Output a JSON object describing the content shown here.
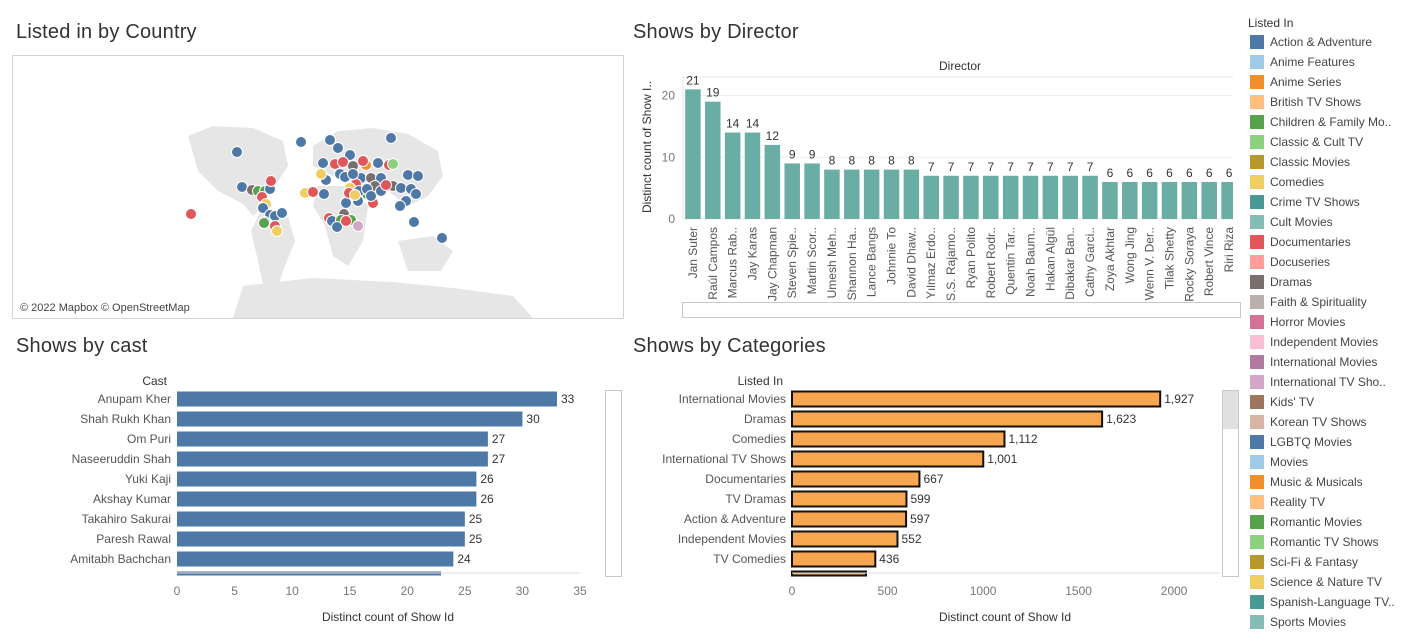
{
  "titles": {
    "country": "Listed in by Country",
    "director": "Shows by Director",
    "cast": "Shows by cast",
    "categories": "Shows by Categories"
  },
  "map": {
    "credit": "© 2022 Mapbox © OpenStreetMap",
    "land_color": "#e8e8e8"
  },
  "legend": {
    "title": "Listed In",
    "items": [
      {
        "label": "Action & Adventure",
        "color": "#4e79a7"
      },
      {
        "label": "Anime Features",
        "color": "#a0cbe8"
      },
      {
        "label": "Anime Series",
        "color": "#f28e2b"
      },
      {
        "label": "British TV Shows",
        "color": "#ffbe7d"
      },
      {
        "label": "Children & Family Mo..",
        "color": "#59a14f"
      },
      {
        "label": "Classic & Cult TV",
        "color": "#8cd17d"
      },
      {
        "label": "Classic Movies",
        "color": "#b6992d"
      },
      {
        "label": "Comedies",
        "color": "#f1ce63"
      },
      {
        "label": "Crime TV Shows",
        "color": "#499894"
      },
      {
        "label": "Cult Movies",
        "color": "#86bcb6"
      },
      {
        "label": "Documentaries",
        "color": "#e15759"
      },
      {
        "label": "Docuseries",
        "color": "#ff9d9a"
      },
      {
        "label": "Dramas",
        "color": "#79706e"
      },
      {
        "label": "Faith & Spirituality",
        "color": "#bab0ac"
      },
      {
        "label": "Horror Movies",
        "color": "#d37295"
      },
      {
        "label": "Independent Movies",
        "color": "#fabfd2"
      },
      {
        "label": "International Movies",
        "color": "#b07aa1"
      },
      {
        "label": "International TV Sho..",
        "color": "#d4a6c8"
      },
      {
        "label": "Kids' TV",
        "color": "#9d7660"
      },
      {
        "label": "Korean TV Shows",
        "color": "#d7b5a6"
      },
      {
        "label": "LGBTQ Movies",
        "color": "#4e79a7"
      },
      {
        "label": "Movies",
        "color": "#a0cbe8"
      },
      {
        "label": "Music & Musicals",
        "color": "#f28e2b"
      },
      {
        "label": "Reality TV",
        "color": "#ffbe7d"
      },
      {
        "label": "Romantic Movies",
        "color": "#59a14f"
      },
      {
        "label": "Romantic TV Shows",
        "color": "#8cd17d"
      },
      {
        "label": "Sci-Fi & Fantasy",
        "color": "#b6992d"
      },
      {
        "label": "Science & Nature TV",
        "color": "#f1ce63"
      },
      {
        "label": "Spanish-Language TV..",
        "color": "#499894"
      },
      {
        "label": "Sports Movies",
        "color": "#86bcb6"
      }
    ]
  },
  "chart_data": [
    {
      "id": "director",
      "type": "bar",
      "title": "Director",
      "ylabel": "Distinct count of Show I..",
      "ylim": [
        0,
        23
      ],
      "yticks": [
        0,
        10,
        20
      ],
      "color": "#6aada5",
      "categories": [
        "Jan Suter",
        "Raúl Campos",
        "Marcus Rab..",
        "Jay Karas",
        "Jay Chapman",
        "Steven Spie..",
        "Martin Scor..",
        "Umesh Meh..",
        "Shannon Ha..",
        "Lance Bangs",
        "Johnnie To",
        "David Dhaw..",
        "Yılmaz Erdo..",
        "S.S. Rajamo..",
        "Ryan Polito",
        "Robert Rodr..",
        "Quentin Tar..",
        "Noah Baum..",
        "Hakan Algül",
        "Dibakar Ban..",
        "Cathy Garci..",
        "Zoya Akhtar",
        "Wong Jing",
        "Wenn V. Der..",
        "Tilak Shetty",
        "Rocky Soraya",
        "Robert Vince",
        "Riri Riza"
      ],
      "values": [
        21,
        19,
        14,
        14,
        12,
        9,
        9,
        8,
        8,
        8,
        8,
        8,
        7,
        7,
        7,
        7,
        7,
        7,
        7,
        7,
        7,
        6,
        6,
        6,
        6,
        6,
        6,
        6
      ]
    },
    {
      "id": "cast",
      "type": "bar",
      "orientation": "horizontal",
      "category_header": "Cast",
      "xlabel": "Distinct count of Show Id",
      "xlim": [
        0,
        35
      ],
      "xticks": [
        0,
        5,
        10,
        15,
        20,
        25,
        30,
        35
      ],
      "color": "#4e79a7",
      "categories": [
        "Anupam Kher",
        "Shah Rukh Khan",
        "Om Puri",
        "Naseeruddin Shah",
        "Yuki Kaji",
        "Akshay Kumar",
        "Takahiro Sakurai",
        "Paresh Rawal",
        "Amitabh Bachchan"
      ],
      "values": [
        33,
        30,
        27,
        27,
        26,
        26,
        25,
        25,
        24
      ]
    },
    {
      "id": "categories",
      "type": "bar",
      "orientation": "horizontal",
      "category_header": "Listed In",
      "xlabel": "Distinct count of Show Id",
      "xlim": [
        0,
        2240
      ],
      "xticks": [
        0,
        500,
        1000,
        1500,
        2000
      ],
      "color": "#f8a650",
      "categories": [
        "International Movies",
        "Dramas",
        "Comedies",
        "International TV Shows",
        "Documentaries",
        "TV Dramas",
        "Action & Adventure",
        "Independent Movies",
        "TV Comedies"
      ],
      "values": [
        1927,
        1623,
        1112,
        1001,
        667,
        599,
        597,
        552,
        436
      ],
      "labels": [
        "1,927",
        "1,623",
        "1,112",
        "1,001",
        "667",
        "599",
        "597",
        "552",
        "436"
      ]
    }
  ]
}
